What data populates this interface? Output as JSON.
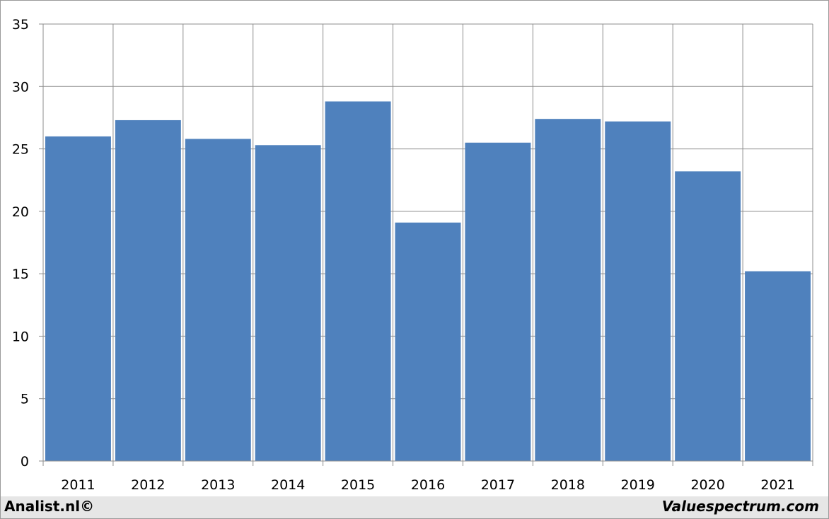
{
  "chart_data": {
    "type": "bar",
    "categories": [
      "2011",
      "2012",
      "2013",
      "2014",
      "2015",
      "2016",
      "2017",
      "2018",
      "2019",
      "2020",
      "2021"
    ],
    "series": [
      {
        "values": [
          26.0,
          27.3,
          25.8,
          25.3,
          28.8,
          19.1,
          25.5,
          27.4,
          27.2,
          23.2,
          15.2
        ]
      }
    ],
    "ylim": [
      0,
      35
    ],
    "yticks": [
      "0",
      "5",
      "10",
      "15",
      "20",
      "25",
      "30",
      "35"
    ],
    "grid": true,
    "bar_color": "#4f81bd",
    "grid_color": "#8c8c8c"
  },
  "footer": {
    "left": "Analist.nl©",
    "right": "Valuespectrum.com"
  }
}
